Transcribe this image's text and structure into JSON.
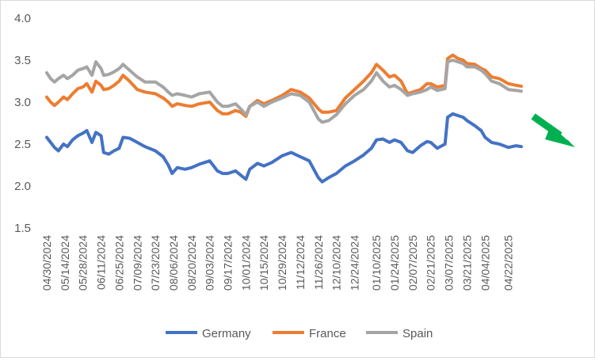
{
  "chart_data": {
    "type": "line",
    "title": "",
    "xlabel": "",
    "ylabel": "",
    "ylim": [
      1.5,
      4.0
    ],
    "yticks": [
      "1.5",
      "2.0",
      "2.5",
      "3.0",
      "3.5",
      "4.0"
    ],
    "grid": false,
    "legend_position": "bottom",
    "x_tick_labels": [
      "04/30/2024",
      "05/14/2024",
      "05/28/2024",
      "06/11/2024",
      "06/25/2024",
      "07/09/2024",
      "07/23/2024",
      "08/06/2024",
      "08/20/2024",
      "09/03/2024",
      "09/17/2024",
      "10/01/2024",
      "10/15/2024",
      "10/29/2024",
      "11/12/2024",
      "11/26/2024",
      "12/10/2024",
      "12/24/2024",
      "01/10/2025",
      "01/24/2025",
      "02/07/2025",
      "02/21/2025",
      "03/07/2025",
      "03/21/2025",
      "04/04/2025",
      "04/22/2025"
    ],
    "x_end": "05/02/2025",
    "series": [
      {
        "name": "Germany",
        "color": "#4472c4",
        "points": [
          [
            "04/30/2024",
            2.58
          ],
          [
            "05/03/2024",
            2.52
          ],
          [
            "05/06/2024",
            2.46
          ],
          [
            "05/09/2024",
            2.42
          ],
          [
            "05/13/2024",
            2.5
          ],
          [
            "05/16/2024",
            2.47
          ],
          [
            "05/20/2024",
            2.55
          ],
          [
            "05/24/2024",
            2.6
          ],
          [
            "05/28/2024",
            2.63
          ],
          [
            "05/31/2024",
            2.66
          ],
          [
            "06/04/2024",
            2.52
          ],
          [
            "06/07/2024",
            2.64
          ],
          [
            "06/11/2024",
            2.6
          ],
          [
            "06/13/2024",
            2.4
          ],
          [
            "06/17/2024",
            2.38
          ],
          [
            "06/21/2024",
            2.42
          ],
          [
            "06/25/2024",
            2.45
          ],
          [
            "06/28/2024",
            2.58
          ],
          [
            "07/03/2024",
            2.57
          ],
          [
            "07/09/2024",
            2.52
          ],
          [
            "07/15/2024",
            2.47
          ],
          [
            "07/23/2024",
            2.42
          ],
          [
            "07/29/2024",
            2.35
          ],
          [
            "08/02/2024",
            2.25
          ],
          [
            "08/05/2024",
            2.15
          ],
          [
            "08/09/2024",
            2.22
          ],
          [
            "08/15/2024",
            2.2
          ],
          [
            "08/20/2024",
            2.22
          ],
          [
            "08/26/2024",
            2.26
          ],
          [
            "09/03/2024",
            2.3
          ],
          [
            "09/09/2024",
            2.18
          ],
          [
            "09/13/2024",
            2.15
          ],
          [
            "09/17/2024",
            2.15
          ],
          [
            "09/23/2024",
            2.18
          ],
          [
            "09/27/2024",
            2.13
          ],
          [
            "10/01/2024",
            2.08
          ],
          [
            "10/04/2024",
            2.2
          ],
          [
            "10/10/2024",
            2.27
          ],
          [
            "10/15/2024",
            2.24
          ],
          [
            "10/21/2024",
            2.28
          ],
          [
            "10/29/2024",
            2.36
          ],
          [
            "11/05/2024",
            2.4
          ],
          [
            "11/12/2024",
            2.35
          ],
          [
            "11/19/2024",
            2.3
          ],
          [
            "11/26/2024",
            2.1
          ],
          [
            "11/29/2024",
            2.05
          ],
          [
            "12/04/2024",
            2.1
          ],
          [
            "12/10/2024",
            2.15
          ],
          [
            "12/17/2024",
            2.24
          ],
          [
            "12/24/2024",
            2.3
          ],
          [
            "12/31/2024",
            2.37
          ],
          [
            "01/06/2025",
            2.45
          ],
          [
            "01/10/2025",
            2.55
          ],
          [
            "01/15/2025",
            2.56
          ],
          [
            "01/20/2025",
            2.52
          ],
          [
            "01/24/2025",
            2.55
          ],
          [
            "01/29/2025",
            2.52
          ],
          [
            "02/03/2025",
            2.42
          ],
          [
            "02/07/2025",
            2.4
          ],
          [
            "02/13/2025",
            2.48
          ],
          [
            "02/18/2025",
            2.53
          ],
          [
            "02/21/2025",
            2.52
          ],
          [
            "02/26/2025",
            2.45
          ],
          [
            "03/04/2025",
            2.5
          ],
          [
            "03/06/2025",
            2.82
          ],
          [
            "03/10/2025",
            2.86
          ],
          [
            "03/14/2025",
            2.84
          ],
          [
            "03/18/2025",
            2.82
          ],
          [
            "03/21/2025",
            2.78
          ],
          [
            "03/27/2025",
            2.72
          ],
          [
            "04/01/2025",
            2.66
          ],
          [
            "04/04/2025",
            2.58
          ],
          [
            "04/09/2025",
            2.52
          ],
          [
            "04/15/2025",
            2.5
          ],
          [
            "04/22/2025",
            2.46
          ],
          [
            "04/28/2025",
            2.48
          ],
          [
            "05/02/2025",
            2.47
          ]
        ]
      },
      {
        "name": "France",
        "color": "#ed7d31",
        "points": [
          [
            "04/30/2024",
            3.06
          ],
          [
            "05/03/2024",
            3.0
          ],
          [
            "05/06/2024",
            2.96
          ],
          [
            "05/09/2024",
            3.0
          ],
          [
            "05/13/2024",
            3.06
          ],
          [
            "05/16/2024",
            3.03
          ],
          [
            "05/20/2024",
            3.1
          ],
          [
            "05/24/2024",
            3.16
          ],
          [
            "05/28/2024",
            3.18
          ],
          [
            "05/31/2024",
            3.22
          ],
          [
            "06/04/2024",
            3.12
          ],
          [
            "06/07/2024",
            3.25
          ],
          [
            "06/11/2024",
            3.2
          ],
          [
            "06/13/2024",
            3.15
          ],
          [
            "06/17/2024",
            3.16
          ],
          [
            "06/21/2024",
            3.2
          ],
          [
            "06/25/2024",
            3.25
          ],
          [
            "06/28/2024",
            3.32
          ],
          [
            "07/03/2024",
            3.25
          ],
          [
            "07/09/2024",
            3.15
          ],
          [
            "07/15/2024",
            3.12
          ],
          [
            "07/23/2024",
            3.1
          ],
          [
            "07/29/2024",
            3.05
          ],
          [
            "08/02/2024",
            3.0
          ],
          [
            "08/05/2024",
            2.95
          ],
          [
            "08/09/2024",
            2.98
          ],
          [
            "08/15/2024",
            2.96
          ],
          [
            "08/20/2024",
            2.95
          ],
          [
            "08/26/2024",
            2.98
          ],
          [
            "09/03/2024",
            3.0
          ],
          [
            "09/09/2024",
            2.9
          ],
          [
            "09/13/2024",
            2.86
          ],
          [
            "09/17/2024",
            2.86
          ],
          [
            "09/23/2024",
            2.9
          ],
          [
            "09/27/2024",
            2.88
          ],
          [
            "10/01/2024",
            2.83
          ],
          [
            "10/04/2024",
            2.95
          ],
          [
            "10/10/2024",
            3.02
          ],
          [
            "10/15/2024",
            2.98
          ],
          [
            "10/21/2024",
            3.02
          ],
          [
            "10/29/2024",
            3.08
          ],
          [
            "11/05/2024",
            3.15
          ],
          [
            "11/12/2024",
            3.12
          ],
          [
            "11/19/2024",
            3.05
          ],
          [
            "11/26/2024",
            2.92
          ],
          [
            "11/29/2024",
            2.88
          ],
          [
            "12/04/2024",
            2.88
          ],
          [
            "12/10/2024",
            2.9
          ],
          [
            "12/17/2024",
            3.05
          ],
          [
            "12/24/2024",
            3.15
          ],
          [
            "12/31/2024",
            3.25
          ],
          [
            "01/06/2025",
            3.35
          ],
          [
            "01/10/2025",
            3.45
          ],
          [
            "01/15/2025",
            3.38
          ],
          [
            "01/20/2025",
            3.3
          ],
          [
            "01/24/2025",
            3.32
          ],
          [
            "01/29/2025",
            3.25
          ],
          [
            "02/03/2025",
            3.1
          ],
          [
            "02/07/2025",
            3.12
          ],
          [
            "02/13/2025",
            3.15
          ],
          [
            "02/18/2025",
            3.22
          ],
          [
            "02/21/2025",
            3.22
          ],
          [
            "02/26/2025",
            3.18
          ],
          [
            "03/04/2025",
            3.2
          ],
          [
            "03/06/2025",
            3.52
          ],
          [
            "03/10/2025",
            3.56
          ],
          [
            "03/14/2025",
            3.52
          ],
          [
            "03/18/2025",
            3.5
          ],
          [
            "03/21/2025",
            3.46
          ],
          [
            "03/27/2025",
            3.45
          ],
          [
            "04/01/2025",
            3.4
          ],
          [
            "04/04/2025",
            3.38
          ],
          [
            "04/09/2025",
            3.3
          ],
          [
            "04/15/2025",
            3.28
          ],
          [
            "04/22/2025",
            3.22
          ],
          [
            "04/28/2025",
            3.2
          ],
          [
            "05/02/2025",
            3.19
          ]
        ]
      },
      {
        "name": "Spain",
        "color": "#a5a5a5",
        "points": [
          [
            "04/30/2024",
            3.35
          ],
          [
            "05/03/2024",
            3.28
          ],
          [
            "05/06/2024",
            3.24
          ],
          [
            "05/09/2024",
            3.28
          ],
          [
            "05/13/2024",
            3.32
          ],
          [
            "05/16/2024",
            3.28
          ],
          [
            "05/20/2024",
            3.32
          ],
          [
            "05/24/2024",
            3.38
          ],
          [
            "05/28/2024",
            3.4
          ],
          [
            "05/31/2024",
            3.42
          ],
          [
            "06/04/2024",
            3.32
          ],
          [
            "06/07/2024",
            3.48
          ],
          [
            "06/11/2024",
            3.4
          ],
          [
            "06/13/2024",
            3.32
          ],
          [
            "06/17/2024",
            3.33
          ],
          [
            "06/21/2024",
            3.36
          ],
          [
            "06/25/2024",
            3.4
          ],
          [
            "06/28/2024",
            3.45
          ],
          [
            "07/03/2024",
            3.38
          ],
          [
            "07/09/2024",
            3.3
          ],
          [
            "07/15/2024",
            3.24
          ],
          [
            "07/23/2024",
            3.24
          ],
          [
            "07/29/2024",
            3.18
          ],
          [
            "08/02/2024",
            3.12
          ],
          [
            "08/05/2024",
            3.08
          ],
          [
            "08/09/2024",
            3.1
          ],
          [
            "08/15/2024",
            3.08
          ],
          [
            "08/20/2024",
            3.06
          ],
          [
            "08/26/2024",
            3.1
          ],
          [
            "09/03/2024",
            3.12
          ],
          [
            "09/09/2024",
            3.0
          ],
          [
            "09/13/2024",
            2.95
          ],
          [
            "09/17/2024",
            2.95
          ],
          [
            "09/23/2024",
            2.98
          ],
          [
            "09/27/2024",
            2.92
          ],
          [
            "10/01/2024",
            2.85
          ],
          [
            "10/04/2024",
            2.95
          ],
          [
            "10/10/2024",
            3.0
          ],
          [
            "10/15/2024",
            2.95
          ],
          [
            "10/21/2024",
            3.0
          ],
          [
            "10/29/2024",
            3.05
          ],
          [
            "11/05/2024",
            3.1
          ],
          [
            "11/12/2024",
            3.08
          ],
          [
            "11/19/2024",
            3.0
          ],
          [
            "11/26/2024",
            2.8
          ],
          [
            "11/29/2024",
            2.76
          ],
          [
            "12/04/2024",
            2.78
          ],
          [
            "12/10/2024",
            2.85
          ],
          [
            "12/17/2024",
            2.98
          ],
          [
            "12/24/2024",
            3.08
          ],
          [
            "12/31/2024",
            3.15
          ],
          [
            "01/06/2025",
            3.25
          ],
          [
            "01/10/2025",
            3.35
          ],
          [
            "01/15/2025",
            3.25
          ],
          [
            "01/20/2025",
            3.18
          ],
          [
            "01/24/2025",
            3.2
          ],
          [
            "01/29/2025",
            3.15
          ],
          [
            "02/03/2025",
            3.08
          ],
          [
            "02/07/2025",
            3.1
          ],
          [
            "02/13/2025",
            3.12
          ],
          [
            "02/18/2025",
            3.15
          ],
          [
            "02/21/2025",
            3.18
          ],
          [
            "02/26/2025",
            3.14
          ],
          [
            "03/04/2025",
            3.16
          ],
          [
            "03/06/2025",
            3.48
          ],
          [
            "03/10/2025",
            3.5
          ],
          [
            "03/14/2025",
            3.48
          ],
          [
            "03/18/2025",
            3.46
          ],
          [
            "03/21/2025",
            3.42
          ],
          [
            "03/27/2025",
            3.42
          ],
          [
            "04/01/2025",
            3.38
          ],
          [
            "04/04/2025",
            3.34
          ],
          [
            "04/09/2025",
            3.25
          ],
          [
            "04/15/2025",
            3.22
          ],
          [
            "04/22/2025",
            3.15
          ],
          [
            "04/28/2025",
            3.14
          ],
          [
            "05/02/2025",
            3.13
          ]
        ]
      }
    ]
  },
  "annotation": {
    "arrow_color": "#00b050",
    "direction": "down-right"
  }
}
